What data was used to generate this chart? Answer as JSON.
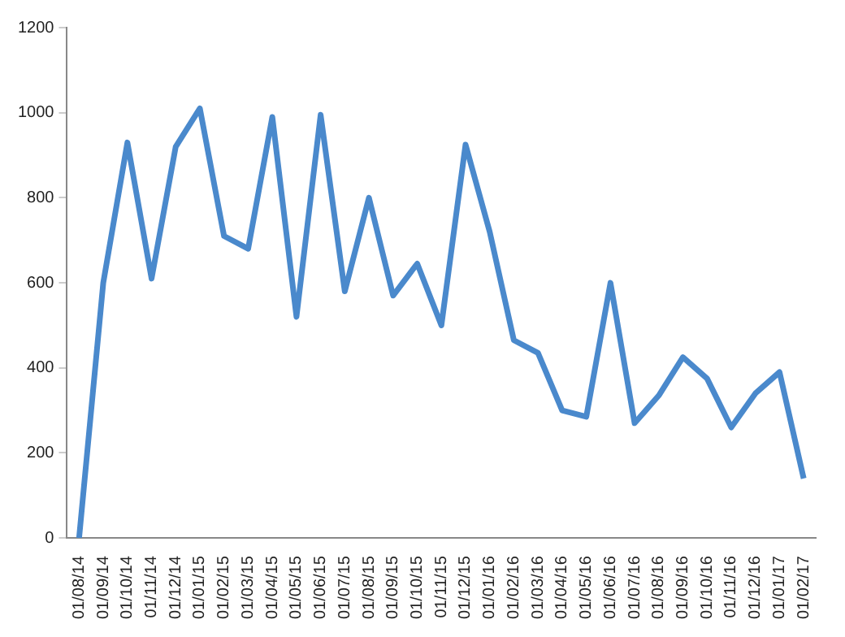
{
  "chart_data": {
    "type": "line",
    "categories": [
      "01/08/14",
      "01/09/14",
      "01/10/14",
      "01/11/14",
      "01/12/14",
      "01/01/15",
      "01/02/15",
      "01/03/15",
      "01/04/15",
      "01/05/15",
      "01/06/15",
      "01/07/15",
      "01/08/15",
      "01/09/15",
      "01/10/15",
      "01/11/15",
      "01/12/15",
      "01/01/16",
      "01/02/16",
      "01/03/16",
      "01/04/16",
      "01/05/16",
      "01/06/16",
      "01/07/16",
      "01/08/16",
      "01/09/16",
      "01/10/16",
      "01/11/16",
      "01/12/16",
      "01/01/17",
      "01/02/17"
    ],
    "series": [
      {
        "color": "#4a89cc",
        "values": [
          0,
          600,
          930,
          610,
          920,
          1010,
          710,
          680,
          990,
          520,
          995,
          580,
          800,
          570,
          645,
          500,
          925,
          720,
          465,
          435,
          300,
          285,
          600,
          270,
          335,
          425,
          375,
          260,
          340,
          390,
          140
        ]
      }
    ],
    "ylim": [
      0,
      1200
    ],
    "yticks": [
      0,
      200,
      400,
      600,
      800,
      1000,
      1200
    ],
    "grid": false,
    "legend": false,
    "marker": "none",
    "line_style": "solid"
  }
}
